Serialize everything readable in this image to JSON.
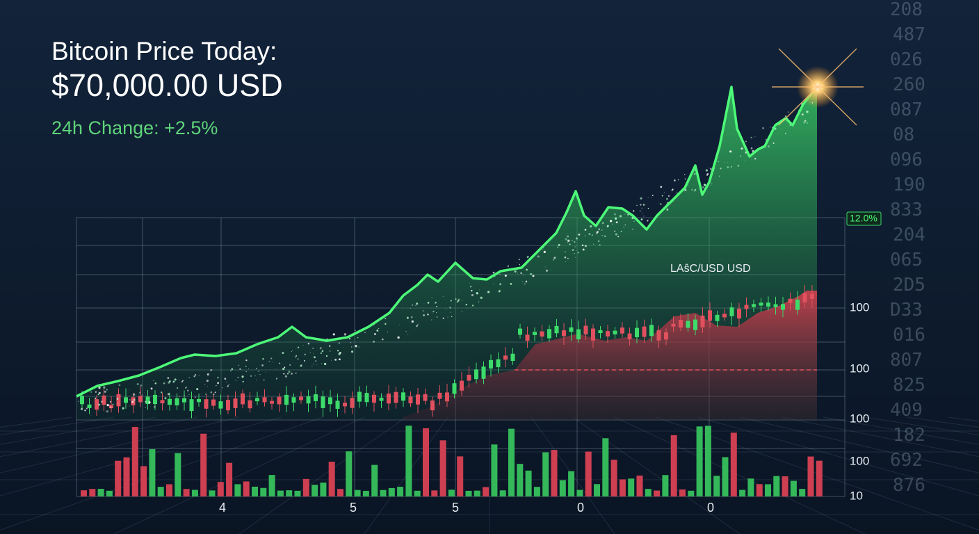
{
  "header": {
    "title": "Bitcoin Price Today:",
    "price": "$70,000.00 USD",
    "change": "24h Change: +2.5%"
  },
  "chart": {
    "pair_label": "LAŝC/USD USD",
    "badge": "12.0%",
    "y_labels": [
      "100",
      "100",
      "100",
      "100",
      "10"
    ],
    "x_labels": [
      "4",
      "5",
      "5",
      "0",
      "0"
    ]
  },
  "background_digits": [
    "208",
    "487",
    "026",
    "260",
    "087",
    "08",
    "096",
    "190",
    "833",
    "204",
    "065",
    "2D5",
    "D33",
    "016",
    "807",
    "825",
    "409",
    "182",
    "692",
    "876"
  ]
}
